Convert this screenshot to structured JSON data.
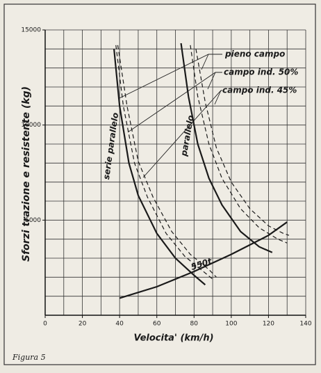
{
  "chart_data": {
    "type": "line",
    "x_label": "Velocita' (km/h)",
    "y_label": "Sforzi trazione e resistente (kg)",
    "caption": "Figura 5",
    "xlim": [
      0,
      140
    ],
    "ylim": [
      0,
      15000
    ],
    "xticks": [
      0,
      20,
      40,
      60,
      80,
      100,
      120,
      140
    ],
    "yticks": [
      5000,
      10000,
      15000
    ],
    "xgrid": [
      10,
      20,
      30,
      40,
      50,
      60,
      70,
      80,
      90,
      100,
      110,
      120,
      130,
      140
    ],
    "ygrid": [
      1000,
      2000,
      3000,
      4000,
      5000,
      6000,
      7000,
      8000,
      9000,
      10000,
      11000,
      12000,
      13000,
      14000,
      15000
    ],
    "series": [
      {
        "color": "#1a1a1a",
        "dashed": false,
        "x": [
          37,
          40,
          45,
          50,
          60,
          70,
          80,
          86
        ],
        "values": [
          14000,
          11000,
          8000,
          6300,
          4300,
          3000,
          2100,
          1600
        ]
      },
      {
        "color": "#1a1a1a",
        "dashed": true,
        "x": [
          38,
          42,
          48,
          55,
          65,
          75,
          85,
          90
        ],
        "values": [
          14200,
          11000,
          8000,
          6200,
          4300,
          3100,
          2300,
          1900
        ]
      },
      {
        "color": "#1a1a1a",
        "dashed": true,
        "x": [
          39,
          44,
          50,
          58,
          68,
          78,
          88,
          92
        ],
        "values": [
          14200,
          11000,
          8100,
          6200,
          4400,
          3200,
          2400,
          2000
        ]
      },
      {
        "color": "#1a1a1a",
        "dashed": false,
        "x": [
          73,
          77,
          82,
          88,
          95,
          105,
          115,
          122
        ],
        "values": [
          14300,
          11500,
          9000,
          7200,
          5800,
          4400,
          3600,
          3300
        ]
      },
      {
        "color": "#1a1a1a",
        "dashed": true,
        "x": [
          78,
          82,
          88,
          95,
          105,
          115,
          125,
          130
        ],
        "values": [
          14200,
          11500,
          9000,
          7200,
          5600,
          4600,
          4000,
          3800
        ]
      },
      {
        "color": "#1a1a1a",
        "dashed": true,
        "x": [
          81,
          86,
          92,
          100,
          110,
          120,
          128,
          131
        ],
        "values": [
          14000,
          11200,
          8800,
          7000,
          5600,
          4700,
          4300,
          4200
        ]
      },
      {
        "color": "#1a1a1a",
        "dashed": false,
        "x": [
          40,
          60,
          80,
          100,
          120,
          130
        ],
        "values": [
          900,
          1500,
          2300,
          3200,
          4200,
          4900
        ]
      }
    ],
    "annotations": [
      "pieno campo",
      "campo ind. 50%",
      "campo ind. 45%",
      "serie parallelo",
      "parallelo",
      "550t"
    ]
  }
}
